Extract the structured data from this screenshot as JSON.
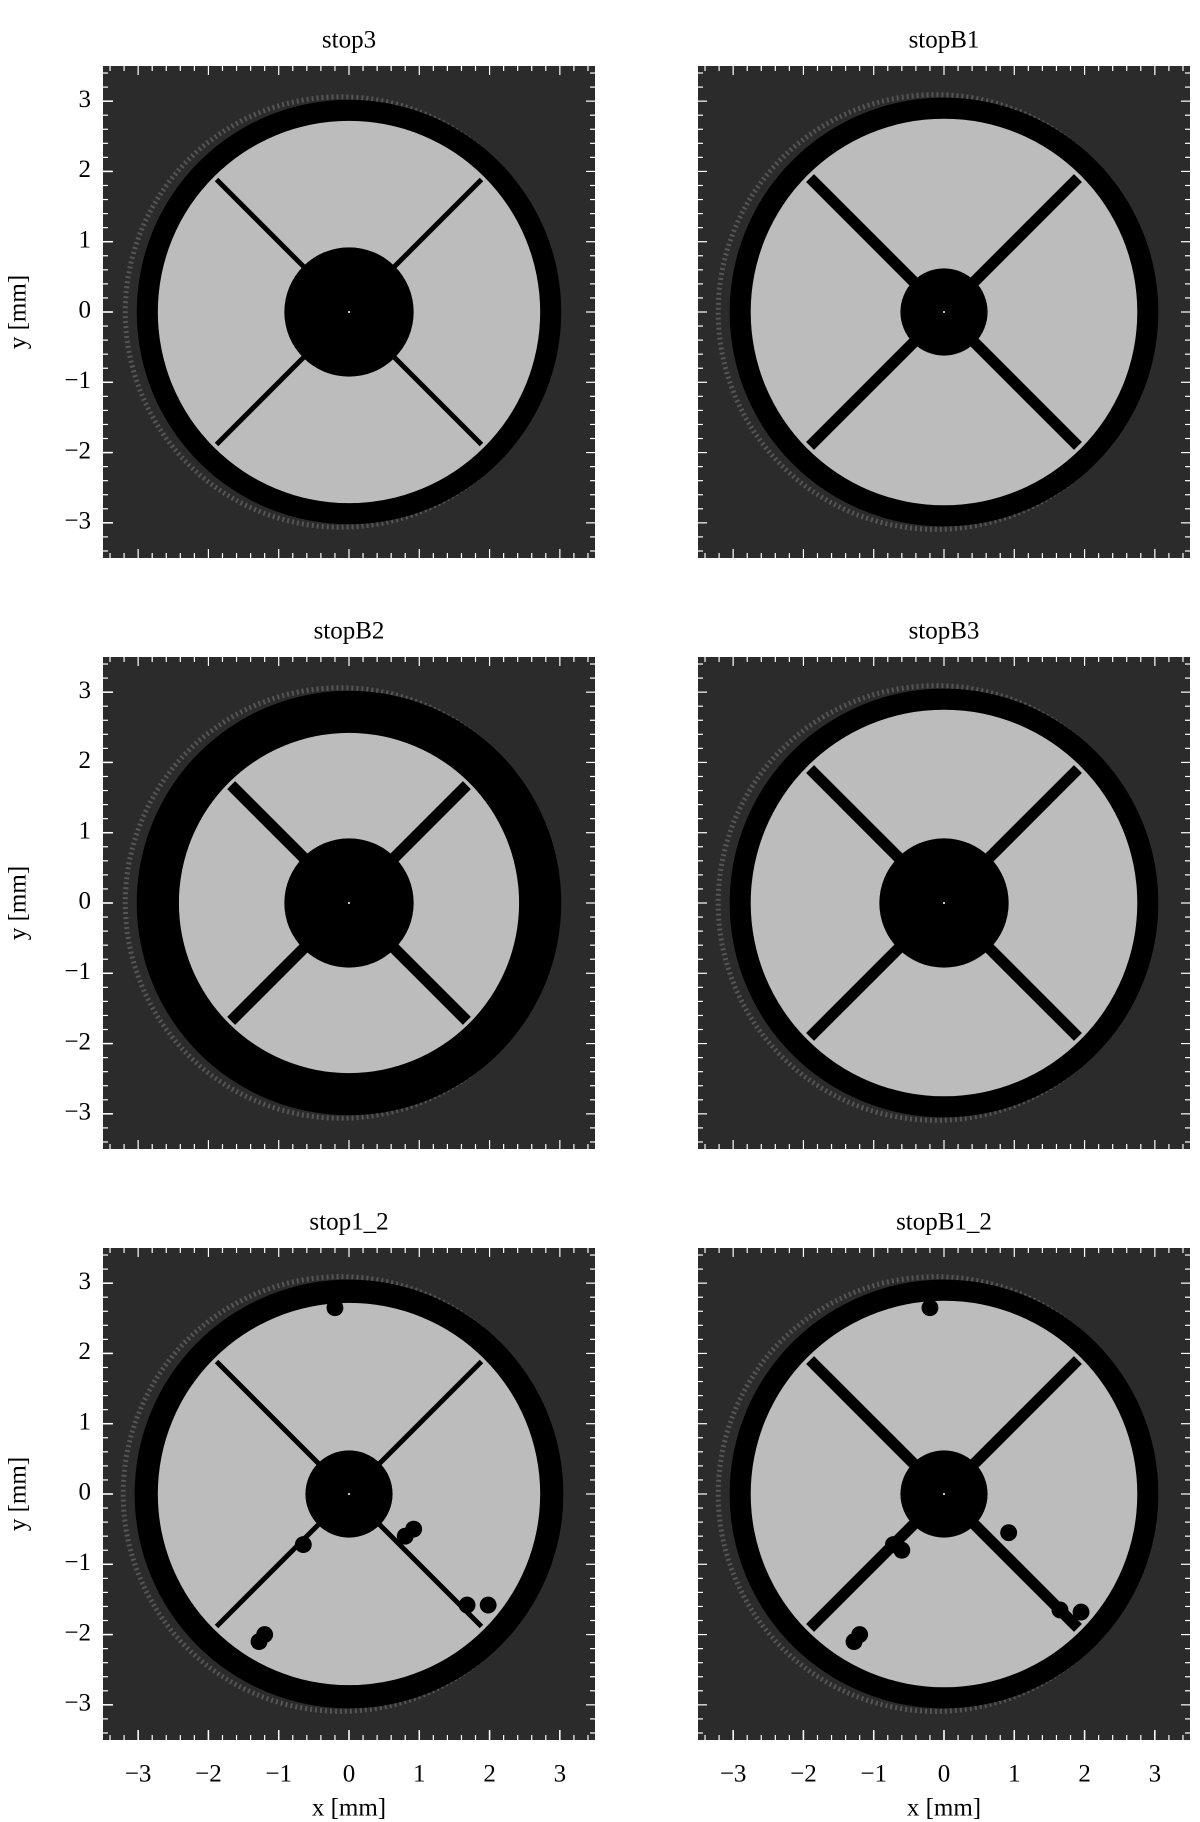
{
  "chart_data": [
    {
      "type": "image",
      "title": "stop3",
      "xlim": [
        -3.5,
        3.5
      ],
      "ylim": [
        -3.5,
        3.5
      ],
      "ylabel": "y [mm]",
      "yticks": [
        {
          "value": -3,
          "label": "−3"
        },
        {
          "value": -2,
          "label": "−2"
        },
        {
          "value": -1,
          "label": "−1"
        },
        0,
        1,
        2,
        3
      ]
    },
    {
      "type": "image",
      "title": "stopB1",
      "xlim": [
        -3.5,
        3.5
      ],
      "ylim": [
        -3.5,
        3.5
      ]
    },
    {
      "type": "image",
      "title": "stopB2",
      "xlim": [
        -3.5,
        3.5
      ],
      "ylim": [
        -3.5,
        3.5
      ],
      "ylabel": "y [mm]",
      "yticks": [
        {
          "value": -3,
          "label": "−3"
        },
        {
          "value": -2,
          "label": "−2"
        },
        {
          "value": -1,
          "label": "−1"
        },
        0,
        1,
        2,
        3
      ]
    },
    {
      "type": "image",
      "title": "stopB3",
      "xlim": [
        -3.5,
        3.5
      ],
      "ylim": [
        -3.5,
        3.5
      ]
    },
    {
      "type": "image",
      "title": "stop1_2",
      "xlim": [
        -3.5,
        3.5
      ],
      "ylim": [
        -3.5,
        3.5
      ],
      "ylabel": "y [mm]",
      "xlabel": "x [mm]",
      "yticks": [
        {
          "value": -3,
          "label": "−3"
        },
        {
          "value": -2,
          "label": "−2"
        },
        {
          "value": -1,
          "label": "−1"
        },
        0,
        1,
        2,
        3
      ],
      "xticks": [
        {
          "value": -3,
          "label": "−3"
        },
        {
          "value": -2,
          "label": "−2"
        },
        {
          "value": -1,
          "label": "−1"
        },
        0,
        1,
        2,
        3
      ]
    },
    {
      "type": "image",
      "title": "stopB1_2",
      "xlim": [
        -3.5,
        3.5
      ],
      "ylim": [
        -3.5,
        3.5
      ],
      "xlabel": "x [mm]",
      "xticks": [
        {
          "value": -3,
          "label": "−3"
        },
        {
          "value": -2,
          "label": "−2"
        },
        {
          "value": -1,
          "label": "−1"
        },
        0,
        1,
        2,
        3
      ]
    }
  ]
}
